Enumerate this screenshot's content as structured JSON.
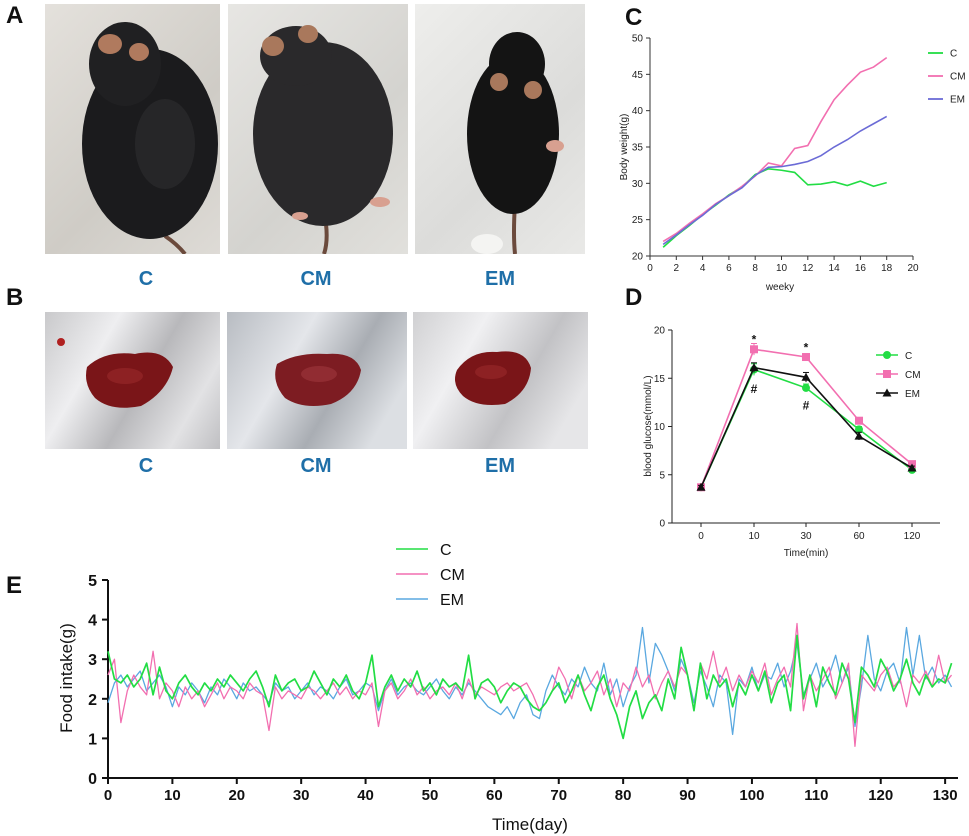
{
  "panels": {
    "a": {
      "label": "A",
      "captions": [
        "C",
        "CM",
        "EM"
      ]
    },
    "b": {
      "label": "B",
      "captions": [
        "C",
        "CM",
        "EM"
      ]
    },
    "c": {
      "label": "C"
    },
    "d": {
      "label": "D"
    },
    "e": {
      "label": "E"
    }
  },
  "colors": {
    "C": "#22dd44",
    "CM": "#f26fb0",
    "EM": "#6b6bd6",
    "EM_e": "#5aa8e0",
    "D_EM": "#111111"
  },
  "chart_data": [
    {
      "id": "c",
      "type": "line",
      "title": "",
      "xlabel": "weeky",
      "ylabel": "Body weight(g)",
      "xlim": [
        0,
        20
      ],
      "ylim": [
        20,
        50
      ],
      "xticks": [
        "0",
        "2",
        "4",
        "6",
        "8",
        "10",
        "12",
        "14",
        "16",
        "18",
        "20"
      ],
      "yticks": [
        "20",
        "25",
        "30",
        "35",
        "40",
        "45",
        "50"
      ],
      "legend": [
        "C",
        "CM",
        "EM"
      ],
      "legend_position": "right",
      "series": [
        {
          "name": "C",
          "x": [
            1,
            2,
            3,
            4,
            5,
            6,
            7,
            8,
            9,
            10,
            11,
            12,
            13,
            14,
            15,
            16,
            17,
            18
          ],
          "values": [
            21.2,
            22.8,
            24.2,
            25.7,
            27.0,
            28.4,
            29.5,
            31.2,
            32.0,
            31.8,
            31.5,
            29.8,
            29.9,
            30.2,
            29.7,
            30.3,
            29.6,
            30.1
          ]
        },
        {
          "name": "CM",
          "x": [
            1,
            2,
            3,
            4,
            5,
            6,
            7,
            8,
            9,
            10,
            11,
            12,
            13,
            14,
            15,
            16,
            17,
            18
          ],
          "values": [
            22.0,
            23.1,
            24.5,
            25.8,
            27.2,
            28.3,
            29.6,
            31.0,
            32.8,
            32.4,
            34.8,
            35.2,
            38.5,
            41.5,
            43.5,
            45.3,
            46.0,
            47.3
          ]
        },
        {
          "name": "EM",
          "x": [
            1,
            2,
            3,
            4,
            5,
            6,
            7,
            8,
            9,
            10,
            11,
            12,
            13,
            14,
            15,
            16,
            17,
            18
          ],
          "values": [
            21.6,
            22.9,
            24.3,
            25.6,
            27.1,
            28.3,
            29.4,
            31.1,
            32.2,
            32.3,
            32.6,
            33.0,
            33.8,
            35.0,
            36.0,
            37.2,
            38.2,
            39.2
          ]
        }
      ]
    },
    {
      "id": "d",
      "type": "line",
      "title": "",
      "xlabel": "Time(min)",
      "ylabel": "blood glucose(mmol/L)",
      "categories": [
        "0",
        "10",
        "30",
        "60",
        "120"
      ],
      "ylim": [
        0,
        20
      ],
      "yticks": [
        "0",
        "5",
        "10",
        "15",
        "20"
      ],
      "legend": [
        "C",
        "CM",
        "EM"
      ],
      "legend_position": "right",
      "annotations": [
        {
          "text": "*",
          "category": "10",
          "y": 19.1
        },
        {
          "text": "*",
          "category": "30",
          "y": 18.3
        },
        {
          "text": "#",
          "category": "10",
          "y": 14.0
        },
        {
          "text": "#",
          "category": "30",
          "y": 12.3
        }
      ],
      "series": [
        {
          "name": "C",
          "marker": "circle",
          "values": [
            3.7,
            15.9,
            14.0,
            9.7,
            5.5
          ],
          "errors": [
            0.2,
            0.6,
            0.4,
            0.3,
            0.2
          ]
        },
        {
          "name": "CM",
          "marker": "square",
          "values": [
            3.7,
            18.0,
            17.2,
            10.6,
            6.1
          ],
          "errors": [
            0.2,
            0.6,
            0.3,
            0.3,
            0.2
          ]
        },
        {
          "name": "EM",
          "marker": "triangle",
          "values": [
            3.7,
            16.1,
            15.1,
            9.0,
            5.7
          ],
          "errors": [
            0.2,
            0.5,
            0.5,
            0.4,
            0.2
          ]
        }
      ]
    },
    {
      "id": "e",
      "type": "line",
      "title": "",
      "xlabel": "Time(day)",
      "ylabel": "Food intake(g)",
      "xlim": [
        0,
        132
      ],
      "ylim": [
        0,
        5
      ],
      "xticks": [
        "0",
        "10",
        "20",
        "30",
        "40",
        "50",
        "60",
        "70",
        "80",
        "90",
        "100",
        "110",
        "120",
        "130"
      ],
      "yticks": [
        "0",
        "1",
        "2",
        "3",
        "4",
        "5"
      ],
      "legend": [
        "C",
        "CM",
        "EM"
      ],
      "legend_position": "top",
      "series": [
        {
          "name": "C",
          "values": [
            3.2,
            2.5,
            2.4,
            2.6,
            2.3,
            2.5,
            2.9,
            2.1,
            2.8,
            2.2,
            2.0,
            2.4,
            2.6,
            2.3,
            2.1,
            2.4,
            2.2,
            2.5,
            2.3,
            2.6,
            2.4,
            2.2,
            2.5,
            2.7,
            2.3,
            1.8,
            2.6,
            2.2,
            2.4,
            2.5,
            2.2,
            2.3,
            2.7,
            2.4,
            2.1,
            2.5,
            2.3,
            2.6,
            2.2,
            2.0,
            2.4,
            3.1,
            1.8,
            2.3,
            2.6,
            2.2,
            2.5,
            2.3,
            2.7,
            2.2,
            2.4,
            2.1,
            2.5,
            2.3,
            2.4,
            2.2,
            3.1,
            2.0,
            2.4,
            2.5,
            2.3,
            1.9,
            2.2,
            2.4,
            2.3,
            2.0,
            1.8,
            1.7,
            1.9,
            2.2,
            2.4,
            1.9,
            2.2,
            2.6,
            2.1,
            1.7,
            2.3,
            2.6,
            2.0,
            1.6,
            1.0,
            1.8,
            2.2,
            1.5,
            1.9,
            2.1,
            1.7,
            2.5,
            2.0,
            3.3,
            2.6,
            1.7,
            2.9,
            2.0,
            2.6,
            2.3,
            2.5,
            1.8,
            2.4,
            2.1,
            2.6,
            2.2,
            2.7,
            1.9,
            2.4,
            2.6,
            1.7,
            3.6,
            2.0,
            2.6,
            1.8,
            2.8,
            2.4,
            2.1,
            2.9,
            2.5,
            1.4,
            2.8,
            2.6,
            2.3,
            3.0,
            2.7,
            2.2,
            2.5,
            3.0,
            2.4,
            2.1,
            2.6,
            2.3,
            2.5,
            2.4,
            2.9
          ]
        },
        {
          "name": "CM",
          "values": [
            2.6,
            3.0,
            1.4,
            2.2,
            2.6,
            2.3,
            2.1,
            3.2,
            2.0,
            2.4,
            2.2,
            1.8,
            2.3,
            2.0,
            2.2,
            1.8,
            2.1,
            2.4,
            2.0,
            2.3,
            2.2,
            2.0,
            2.4,
            2.2,
            2.1,
            1.2,
            2.3,
            2.0,
            2.2,
            2.1,
            2.0,
            2.3,
            2.2,
            2.0,
            2.2,
            2.4,
            2.1,
            2.3,
            2.0,
            2.2,
            2.1,
            2.4,
            1.3,
            2.2,
            2.4,
            2.0,
            2.2,
            2.5,
            2.1,
            2.3,
            2.0,
            2.2,
            2.3,
            2.1,
            2.4,
            2.0,
            2.5,
            2.1,
            2.3,
            2.2,
            2.1,
            2.3,
            2.4,
            2.2,
            2.3,
            2.4,
            2.1,
            1.7,
            1.9,
            2.2,
            2.8,
            2.5,
            2.0,
            2.6,
            2.2,
            2.4,
            2.7,
            2.1,
            2.5,
            1.8,
            2.4,
            2.2,
            2.8,
            2.3,
            2.6,
            2.0,
            2.4,
            2.7,
            2.3,
            2.8,
            2.6,
            1.7,
            2.9,
            2.5,
            3.2,
            2.4,
            2.8,
            2.2,
            2.6,
            2.3,
            2.7,
            2.4,
            2.9,
            2.1,
            2.5,
            2.8,
            2.3,
            3.9,
            1.7,
            2.6,
            2.2,
            2.5,
            2.8,
            2.0,
            2.4,
            2.9,
            0.8,
            2.6,
            2.4,
            2.2,
            2.6,
            2.8,
            2.3,
            2.5,
            1.8,
            2.6,
            2.4,
            2.7,
            2.3,
            3.1,
            2.4,
            2.6
          ]
        },
        {
          "name": "EM",
          "values": [
            1.9,
            2.4,
            2.6,
            2.3,
            2.5,
            2.7,
            2.2,
            2.4,
            2.6,
            2.3,
            1.8,
            2.3,
            2.1,
            2.4,
            2.2,
            1.9,
            2.3,
            2.1,
            2.5,
            2.3,
            2.0,
            2.4,
            2.2,
            2.3,
            2.1,
            1.9,
            2.4,
            2.2,
            2.3,
            2.0,
            2.2,
            2.4,
            2.1,
            2.3,
            2.2,
            2.0,
            2.3,
            2.5,
            2.1,
            2.2,
            2.4,
            2.3,
            1.7,
            2.2,
            2.5,
            2.1,
            2.3,
            2.4,
            2.2,
            2.1,
            2.3,
            2.5,
            2.2,
            2.0,
            2.3,
            2.1,
            2.4,
            2.2,
            2.0,
            1.8,
            1.7,
            1.6,
            1.8,
            1.5,
            1.9,
            2.1,
            1.6,
            1.5,
            2.2,
            2.6,
            2.3,
            2.1,
            2.5,
            2.3,
            2.8,
            2.4,
            2.2,
            2.9,
            2.1,
            2.5,
            1.8,
            2.3,
            2.6,
            3.8,
            2.4,
            3.4,
            3.1,
            2.7,
            2.2,
            3.0,
            2.6,
            1.9,
            2.7,
            2.3,
            1.8,
            2.6,
            2.4,
            1.1,
            2.5,
            2.3,
            2.8,
            2.2,
            2.6,
            2.5,
            2.9,
            2.3,
            2.7,
            3.4,
            2.1,
            2.5,
            2.9,
            2.3,
            2.6,
            3.1,
            2.4,
            2.8,
            1.3,
            2.3,
            3.6,
            2.5,
            2.2,
            2.7,
            2.9,
            2.4,
            3.8,
            2.6,
            3.6,
            2.5,
            2.8,
            2.4,
            2.6,
            2.3
          ]
        }
      ]
    }
  ]
}
